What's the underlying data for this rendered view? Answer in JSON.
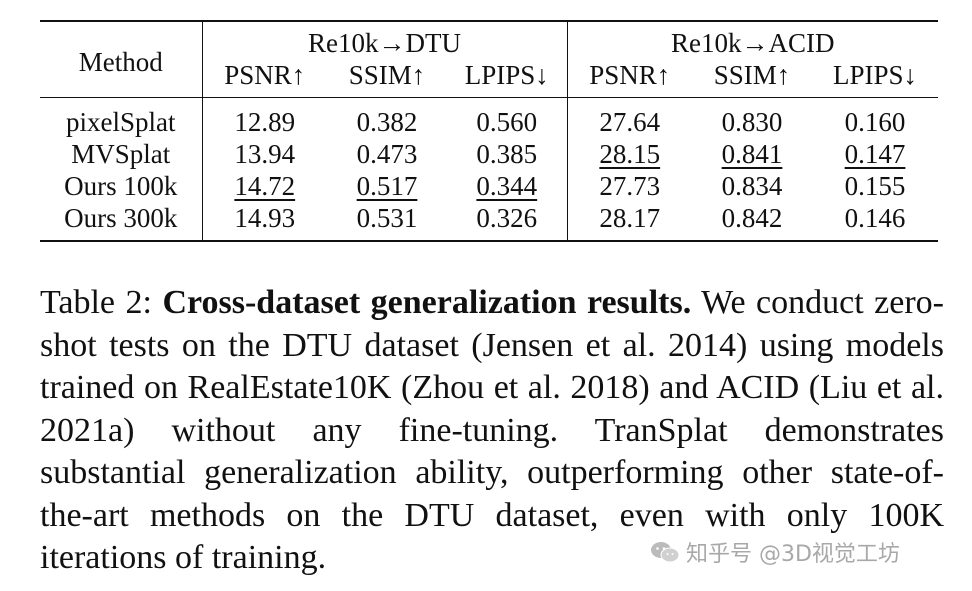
{
  "table": {
    "method_header": "Method",
    "groups": [
      "Re10k→DTU",
      "Re10k→ACID"
    ],
    "metrics": [
      "PSNR↑",
      "SSIM↑",
      "LPIPS↓",
      "PSNR↑",
      "SSIM↑",
      "LPIPS↓"
    ],
    "rows": [
      {
        "method": "pixelSplat",
        "values": [
          "12.89",
          "0.382",
          "0.560",
          "27.64",
          "0.830",
          "0.160"
        ]
      },
      {
        "method": "MVSplat",
        "values": [
          "13.94",
          "0.473",
          "0.385",
          "28.15",
          "0.841",
          "0.147"
        ]
      },
      {
        "method": "Ours 100k",
        "values": [
          "14.72",
          "0.517",
          "0.344",
          "27.73",
          "0.834",
          "0.155"
        ]
      },
      {
        "method": "Ours 300k",
        "values": [
          "14.93",
          "0.531",
          "0.326",
          "28.17",
          "0.842",
          "0.146"
        ]
      }
    ],
    "best_row_index": 3,
    "second_best": {
      "dtu_row_index": 2,
      "acid_row_index": 1
    }
  },
  "caption": {
    "label": "Table 2:",
    "title": "Cross-dataset generalization results.",
    "body": "We conduct zero-shot tests on the DTU dataset (Jensen et al. 2014) using models trained on RealEstate10K (Zhou et al. 2018) and ACID (Liu et al. 2021a) without any fine-tuning. TranSplat demonstrates substantial generalization ability, outperforming other state-of-the-art methods on the DTU dataset, even with only 100K iterations of training."
  },
  "watermark": {
    "text": "知乎号 @3D视觉工坊",
    "icon": "wechat-icon"
  }
}
